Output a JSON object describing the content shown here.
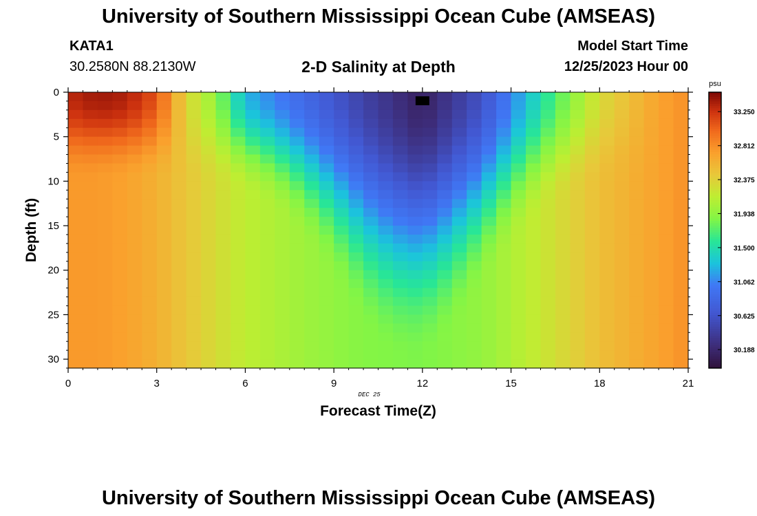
{
  "header": {
    "title": "University of Southern Mississippi Ocean Cube (AMSEAS)",
    "station_id": "KATA1",
    "coordinates": "30.2580N  88.2130W",
    "plot_title": "2-D Salinity at Depth",
    "model_start_label": "Model Start Time",
    "model_start_value": "12/25/2023 Hour 00"
  },
  "footer": {
    "title": "University of Southern Mississippi Ocean Cube (AMSEAS)"
  },
  "chart_data": {
    "type": "heatmap",
    "title": "2-D Salinity at Depth",
    "xlabel": "Forecast Time(Z)",
    "ylabel": "Depth (ft)",
    "date_label": "DEC 25",
    "xlim": [
      0,
      21
    ],
    "ylim": [
      0,
      31
    ],
    "x_ticks": [
      0,
      3,
      6,
      9,
      12,
      15,
      18,
      21
    ],
    "y_ticks": [
      0,
      5,
      10,
      15,
      20,
      25,
      30
    ],
    "colorbar": {
      "unit": "psu",
      "min": 29.95,
      "max": 33.5,
      "tick_labels": [
        "33.250",
        "32.812",
        "32.375",
        "31.938",
        "31.500",
        "31.062",
        "30.625",
        "30.188"
      ],
      "tick_values": [
        33.25,
        32.812,
        32.375,
        31.938,
        31.5,
        31.062,
        30.625,
        30.188
      ]
    },
    "marker": {
      "time": 12,
      "depth": 1
    },
    "grid": {
      "nx": 42,
      "ny": 31,
      "dx": 0.5,
      "dy": 1
    },
    "salinity_model": {
      "description": "Salinity (psu) at key times; low-salinity plume centered near hour 12",
      "times": [
        0,
        1,
        2,
        3,
        4,
        5,
        6,
        8,
        10,
        12,
        14,
        16,
        18,
        20,
        21
      ],
      "surface_salinity": [
        33.3,
        33.4,
        33.35,
        33.1,
        32.35,
        31.95,
        31.25,
        30.85,
        30.45,
        30.12,
        30.6,
        31.5,
        32.3,
        32.7,
        32.8
      ],
      "deep_salinity": [
        32.75,
        32.75,
        32.7,
        32.6,
        32.45,
        32.3,
        32.15,
        32.0,
        31.88,
        31.85,
        31.95,
        32.2,
        32.5,
        32.7,
        32.8
      ]
    }
  }
}
